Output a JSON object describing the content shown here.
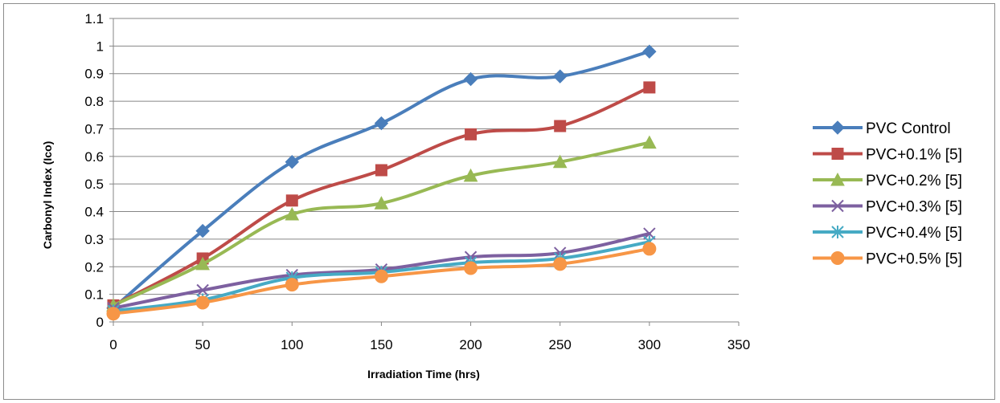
{
  "chart_data": {
    "type": "line",
    "title": "",
    "xlabel": "Irradiation Time (hrs)",
    "ylabel": "Carbonyl Index (Ico)",
    "xlim": [
      0,
      350
    ],
    "ylim": [
      0,
      1.1
    ],
    "x_ticks": [
      0,
      50,
      100,
      150,
      200,
      250,
      300,
      350
    ],
    "y_ticks": [
      0,
      0.1,
      0.2,
      0.3,
      0.4,
      0.5,
      0.6,
      0.7,
      0.8,
      0.9,
      1,
      1.1
    ],
    "y_tick_labels": [
      "0",
      "0.1",
      "0.2",
      "0.3",
      "0.4",
      "0.5",
      "0.6",
      "0.7",
      "0.8",
      "0.9",
      "1",
      "1.1"
    ],
    "grid": "horizontal",
    "legend_position": "right",
    "x": [
      0,
      50,
      100,
      150,
      200,
      250,
      300
    ],
    "series": [
      {
        "name": "PVC Control",
        "color": "#4a7ebb",
        "marker": "diamond",
        "values": [
          0.05,
          0.33,
          0.58,
          0.72,
          0.88,
          0.89,
          0.98
        ]
      },
      {
        "name": "PVC+0.1% [5]",
        "color": "#be4b48",
        "marker": "square",
        "values": [
          0.06,
          0.23,
          0.44,
          0.55,
          0.68,
          0.71,
          0.85
        ]
      },
      {
        "name": "PVC+0.2% [5]",
        "color": "#98b954",
        "marker": "triangle",
        "values": [
          0.06,
          0.21,
          0.39,
          0.43,
          0.53,
          0.58,
          0.65
        ]
      },
      {
        "name": "PVC+0.3% [5]",
        "color": "#7d60a0",
        "marker": "x",
        "values": [
          0.05,
          0.115,
          0.17,
          0.19,
          0.235,
          0.25,
          0.32
        ]
      },
      {
        "name": "PVC+0.4% [5]",
        "color": "#46aac4",
        "marker": "star",
        "values": [
          0.04,
          0.08,
          0.16,
          0.18,
          0.215,
          0.23,
          0.29
        ]
      },
      {
        "name": "PVC+0.5% [5]",
        "color": "#f79646",
        "marker": "circle",
        "values": [
          0.03,
          0.07,
          0.135,
          0.165,
          0.195,
          0.21,
          0.265
        ]
      }
    ]
  }
}
